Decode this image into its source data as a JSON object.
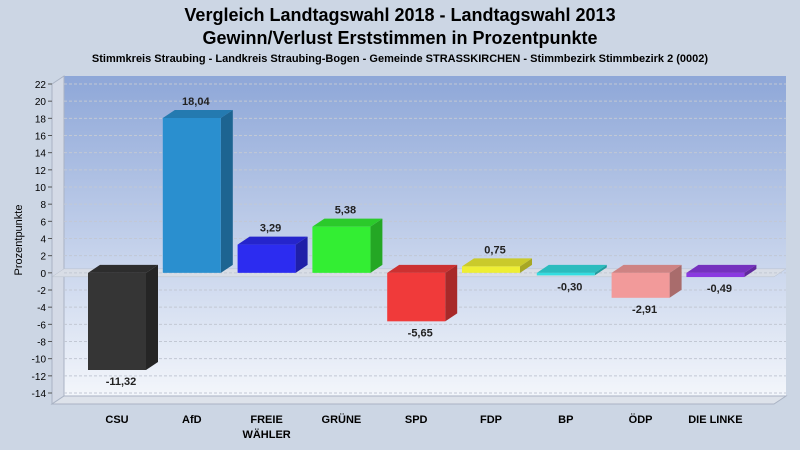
{
  "header": {
    "title_line1": "Vergleich Landtagswahl 2018 - Landtagswahl 2013",
    "title_line2": "Gewinn/Verlust Erststimmen in Prozentpunkte",
    "subtitle": "Stimmkreis Straubing - Landkreis Straubing-Bogen - Gemeinde STRASSKIRCHEN - Stimmbezirk Stimmbezirk 2 (0002)"
  },
  "chart_data": {
    "type": "bar",
    "title": "Vergleich Landtagswahl 2018 - Landtagswahl 2013\nGewinn/Verlust Erststimmen in Prozentpunkte",
    "subtitle": "Stimmkreis Straubing - Landkreis Straubing-Bogen - Gemeinde STRASSKIRCHEN - Stimmbezirk Stimmbezirk 2 (0002)",
    "ylabel": "Prozentpunkte",
    "xlabel": "",
    "ylim": [
      -14,
      22
    ],
    "yticks": [
      22,
      20,
      18,
      16,
      14,
      12,
      10,
      8,
      6,
      4,
      2,
      0,
      -2,
      -4,
      -6,
      -8,
      -10,
      -12,
      -14
    ],
    "grid": true,
    "categories": [
      [
        "CSU"
      ],
      [
        "AfD"
      ],
      [
        "FREIE",
        "WÄHLER"
      ],
      [
        "GRÜNE"
      ],
      [
        "SPD"
      ],
      [
        "FDP"
      ],
      [
        "BP"
      ],
      [
        "ÖDP"
      ],
      [
        "DIE LINKE"
      ]
    ],
    "values": [
      -11.32,
      18.04,
      3.29,
      5.38,
      -5.65,
      0.75,
      -0.3,
      -2.91,
      -0.49
    ],
    "value_labels": [
      "-11,32",
      "18,04",
      "3,29",
      "5,38",
      "-5,65",
      "0,75",
      "-0,30",
      "-2,91",
      "-0,49"
    ],
    "colors": [
      "#353535",
      "#2a8fcf",
      "#2c2cf0",
      "#33ee33",
      "#f03a3a",
      "#eeee33",
      "#33dde0",
      "#f29a9a",
      "#8a3ae0"
    ]
  }
}
